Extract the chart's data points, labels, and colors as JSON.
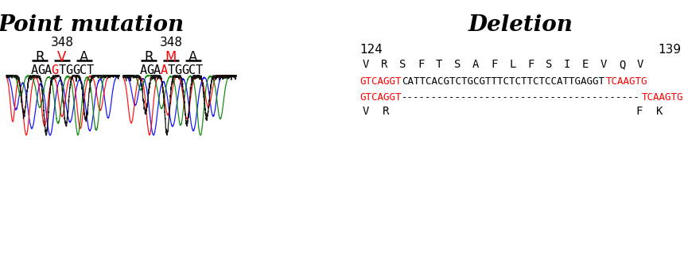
{
  "title_left": "Point mutation",
  "title_right": "Deletion",
  "pos_label_1": "348",
  "pos_label_2": "348",
  "seq1_amino": [
    "R",
    "V",
    "A"
  ],
  "seq1_amino_colors": [
    "black",
    "red",
    "black"
  ],
  "seq2_amino": [
    "R",
    "M",
    "A"
  ],
  "seq2_amino_colors": [
    "black",
    "red",
    "black"
  ],
  "del_num_left": "124",
  "del_num_right": "139",
  "del_amino_full": [
    "V",
    " ",
    "R",
    " ",
    "S",
    " ",
    "F",
    " ",
    "T",
    " ",
    "S",
    " ",
    "A",
    " ",
    "F",
    " ",
    "L",
    " ",
    "F",
    " ",
    "S",
    " ",
    "I",
    " ",
    "E",
    " ",
    "V",
    " ",
    "Q",
    " ",
    "V"
  ],
  "del_dna_line1_parts": [
    [
      "GTCAGGT",
      "red"
    ],
    [
      "CATTCACGTCTGCGTTTCTCTTCTCCATTGAGGT",
      "black"
    ],
    [
      "TCAAGTG",
      "red"
    ]
  ],
  "del_dna_line2_parts": [
    [
      "GTCAGGT",
      "red"
    ],
    [
      "----------------------------------------",
      "black"
    ],
    [
      "TCAAGTG",
      "red"
    ]
  ],
  "del_amino_bottom_left": "V  R",
  "del_amino_bottom_right": "F  K",
  "bg_color": "#ffffff"
}
